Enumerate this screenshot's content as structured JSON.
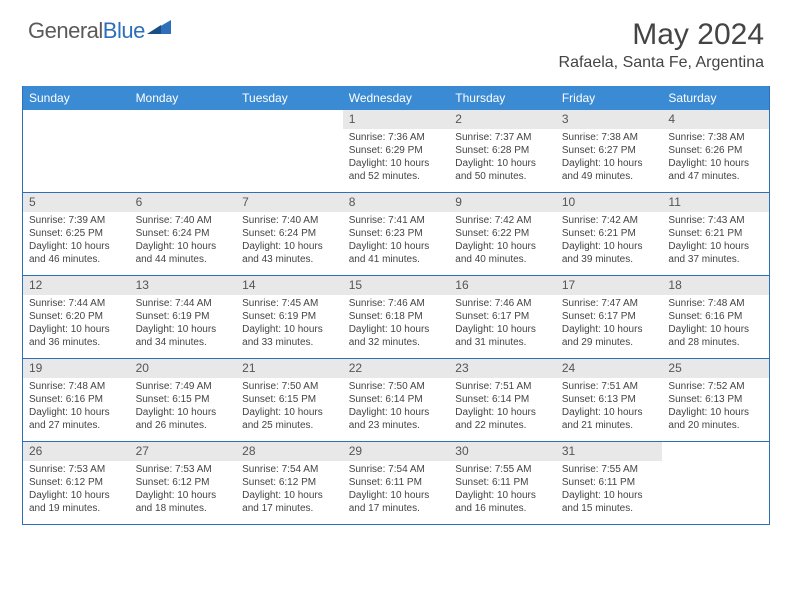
{
  "logo": {
    "text1": "General",
    "text2": "Blue"
  },
  "title": "May 2024",
  "location": "Rafaela, Santa Fe, Argentina",
  "colors": {
    "header_bg": "#3b8bd4",
    "border": "#2d6fb8",
    "daynum_bg": "#e8e8e8"
  },
  "daysOfWeek": [
    "Sunday",
    "Monday",
    "Tuesday",
    "Wednesday",
    "Thursday",
    "Friday",
    "Saturday"
  ],
  "weeks": [
    [
      {
        "n": "",
        "sr": "",
        "ss": "",
        "dl": ""
      },
      {
        "n": "",
        "sr": "",
        "ss": "",
        "dl": ""
      },
      {
        "n": "",
        "sr": "",
        "ss": "",
        "dl": ""
      },
      {
        "n": "1",
        "sr": "7:36 AM",
        "ss": "6:29 PM",
        "dl": "10 hours and 52 minutes."
      },
      {
        "n": "2",
        "sr": "7:37 AM",
        "ss": "6:28 PM",
        "dl": "10 hours and 50 minutes."
      },
      {
        "n": "3",
        "sr": "7:38 AM",
        "ss": "6:27 PM",
        "dl": "10 hours and 49 minutes."
      },
      {
        "n": "4",
        "sr": "7:38 AM",
        "ss": "6:26 PM",
        "dl": "10 hours and 47 minutes."
      }
    ],
    [
      {
        "n": "5",
        "sr": "7:39 AM",
        "ss": "6:25 PM",
        "dl": "10 hours and 46 minutes."
      },
      {
        "n": "6",
        "sr": "7:40 AM",
        "ss": "6:24 PM",
        "dl": "10 hours and 44 minutes."
      },
      {
        "n": "7",
        "sr": "7:40 AM",
        "ss": "6:24 PM",
        "dl": "10 hours and 43 minutes."
      },
      {
        "n": "8",
        "sr": "7:41 AM",
        "ss": "6:23 PM",
        "dl": "10 hours and 41 minutes."
      },
      {
        "n": "9",
        "sr": "7:42 AM",
        "ss": "6:22 PM",
        "dl": "10 hours and 40 minutes."
      },
      {
        "n": "10",
        "sr": "7:42 AM",
        "ss": "6:21 PM",
        "dl": "10 hours and 39 minutes."
      },
      {
        "n": "11",
        "sr": "7:43 AM",
        "ss": "6:21 PM",
        "dl": "10 hours and 37 minutes."
      }
    ],
    [
      {
        "n": "12",
        "sr": "7:44 AM",
        "ss": "6:20 PM",
        "dl": "10 hours and 36 minutes."
      },
      {
        "n": "13",
        "sr": "7:44 AM",
        "ss": "6:19 PM",
        "dl": "10 hours and 34 minutes."
      },
      {
        "n": "14",
        "sr": "7:45 AM",
        "ss": "6:19 PM",
        "dl": "10 hours and 33 minutes."
      },
      {
        "n": "15",
        "sr": "7:46 AM",
        "ss": "6:18 PM",
        "dl": "10 hours and 32 minutes."
      },
      {
        "n": "16",
        "sr": "7:46 AM",
        "ss": "6:17 PM",
        "dl": "10 hours and 31 minutes."
      },
      {
        "n": "17",
        "sr": "7:47 AM",
        "ss": "6:17 PM",
        "dl": "10 hours and 29 minutes."
      },
      {
        "n": "18",
        "sr": "7:48 AM",
        "ss": "6:16 PM",
        "dl": "10 hours and 28 minutes."
      }
    ],
    [
      {
        "n": "19",
        "sr": "7:48 AM",
        "ss": "6:16 PM",
        "dl": "10 hours and 27 minutes."
      },
      {
        "n": "20",
        "sr": "7:49 AM",
        "ss": "6:15 PM",
        "dl": "10 hours and 26 minutes."
      },
      {
        "n": "21",
        "sr": "7:50 AM",
        "ss": "6:15 PM",
        "dl": "10 hours and 25 minutes."
      },
      {
        "n": "22",
        "sr": "7:50 AM",
        "ss": "6:14 PM",
        "dl": "10 hours and 23 minutes."
      },
      {
        "n": "23",
        "sr": "7:51 AM",
        "ss": "6:14 PM",
        "dl": "10 hours and 22 minutes."
      },
      {
        "n": "24",
        "sr": "7:51 AM",
        "ss": "6:13 PM",
        "dl": "10 hours and 21 minutes."
      },
      {
        "n": "25",
        "sr": "7:52 AM",
        "ss": "6:13 PM",
        "dl": "10 hours and 20 minutes."
      }
    ],
    [
      {
        "n": "26",
        "sr": "7:53 AM",
        "ss": "6:12 PM",
        "dl": "10 hours and 19 minutes."
      },
      {
        "n": "27",
        "sr": "7:53 AM",
        "ss": "6:12 PM",
        "dl": "10 hours and 18 minutes."
      },
      {
        "n": "28",
        "sr": "7:54 AM",
        "ss": "6:12 PM",
        "dl": "10 hours and 17 minutes."
      },
      {
        "n": "29",
        "sr": "7:54 AM",
        "ss": "6:11 PM",
        "dl": "10 hours and 17 minutes."
      },
      {
        "n": "30",
        "sr": "7:55 AM",
        "ss": "6:11 PM",
        "dl": "10 hours and 16 minutes."
      },
      {
        "n": "31",
        "sr": "7:55 AM",
        "ss": "6:11 PM",
        "dl": "10 hours and 15 minutes."
      },
      {
        "n": "",
        "sr": "",
        "ss": "",
        "dl": ""
      }
    ]
  ],
  "labels": {
    "sunrise": "Sunrise:",
    "sunset": "Sunset:",
    "daylight": "Daylight:"
  }
}
